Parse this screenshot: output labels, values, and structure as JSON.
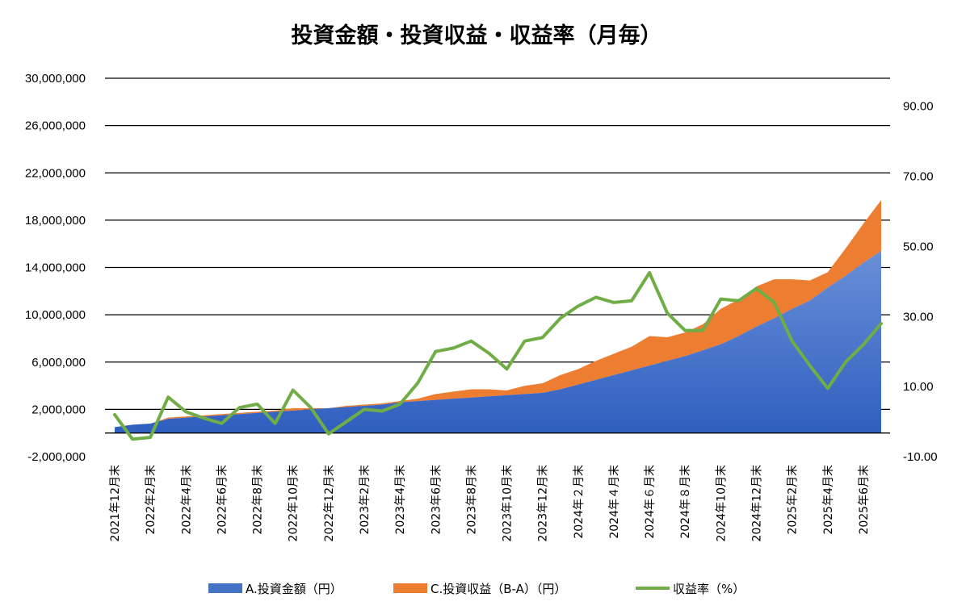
{
  "chart_data": {
    "type": "area",
    "title": "投資金額・投資収益・収益率（月毎）",
    "grid": true,
    "legend_position": "bottom",
    "y_left": {
      "ticks": [
        "30,000,000",
        "26,000,000",
        "22,000,000",
        "18,000,000",
        "14,000,000",
        "10,000,000",
        "6,000,000",
        "2,000,000",
        "-2,000,000"
      ],
      "range": [
        -2000000,
        30000000
      ]
    },
    "y_right": {
      "ticks": [
        "90.00",
        "70.00",
        "50.00",
        "30.00",
        "10.00",
        "-10.00"
      ],
      "range": [
        -10,
        98
      ]
    },
    "x_tick_labels": [
      "2021年12月末",
      "2022年2月末",
      "2022年4月末",
      "2022年6月末",
      "2022年8月末",
      "2022年10月末",
      "2022年12月末",
      "2023年2月末",
      "2023年4月末",
      "2023年6月末",
      "2023年8月末",
      "2023年10月末",
      "2023年12月末",
      "2024年２月末",
      "2024年４月末",
      "2024年６月末",
      "2024年８月末",
      "2024年10月末",
      "2024年12月末",
      "2025年2月末",
      "2025年4月末",
      "2025年6月末"
    ],
    "months": [
      "2021-12",
      "2022-01",
      "2022-02",
      "2022-03",
      "2022-04",
      "2022-05",
      "2022-06",
      "2022-07",
      "2022-08",
      "2022-09",
      "2022-10",
      "2022-11",
      "2022-12",
      "2023-01",
      "2023-02",
      "2023-03",
      "2023-04",
      "2023-05",
      "2023-06",
      "2023-07",
      "2023-08",
      "2023-09",
      "2023-10",
      "2023-11",
      "2023-12",
      "2024-01",
      "2024-02",
      "2024-03",
      "2024-04",
      "2024-05",
      "2024-06",
      "2024-07",
      "2024-08",
      "2024-09",
      "2024-10",
      "2024-11",
      "2024-12",
      "2025-01",
      "2025-02",
      "2025-03",
      "2025-04",
      "2025-05",
      "2025-06",
      "2025-07"
    ],
    "series": [
      {
        "name": "A.投資金額（円）",
        "type": "area",
        "color": "#4472C4",
        "axis": "left",
        "values": [
          500000,
          700000,
          800000,
          1200000,
          1300000,
          1400000,
          1500000,
          1600000,
          1700000,
          1800000,
          1900000,
          2000000,
          2100000,
          2200000,
          2300000,
          2400000,
          2600000,
          2700000,
          2800000,
          2900000,
          3000000,
          3100000,
          3200000,
          3300000,
          3400000,
          3700000,
          4100000,
          4500000,
          4900000,
          5300000,
          5700000,
          6100000,
          6500000,
          7000000,
          7500000,
          8200000,
          9000000,
          9700000,
          10500000,
          11200000,
          12300000,
          13300000,
          14400000,
          15400000
        ]
      },
      {
        "name": "C.投資収益（B-A）（円）",
        "type": "area",
        "color": "#ED7D31",
        "axis": "left",
        "values": [
          0,
          0,
          0,
          100000,
          100000,
          100000,
          100000,
          100000,
          100000,
          100000,
          200000,
          100000,
          0,
          100000,
          100000,
          100000,
          100000,
          200000,
          500000,
          600000,
          700000,
          600000,
          400000,
          700000,
          800000,
          1200000,
          1300000,
          1600000,
          1800000,
          2000000,
          2500000,
          2000000,
          2000000,
          2200000,
          3000000,
          3100000,
          3400000,
          3300000,
          2500000,
          1700000,
          1300000,
          2300000,
          3300000,
          4300000
        ]
      },
      {
        "name": "収益率（%）",
        "type": "line",
        "color": "#70AD47",
        "axis": "right",
        "values": [
          2.0,
          -5.0,
          -4.5,
          7.0,
          2.8,
          1.0,
          -0.5,
          4.0,
          5.0,
          -0.5,
          9.0,
          4.0,
          -3.5,
          0.0,
          3.5,
          3.0,
          5.0,
          11.0,
          20.0,
          21.0,
          23.0,
          19.5,
          15.0,
          23.0,
          24.0,
          29.5,
          33.0,
          35.5,
          34.0,
          34.5,
          42.5,
          31.0,
          26.0,
          26.0,
          35.0,
          34.5,
          38.0,
          34.0,
          23.0,
          16.0,
          9.5,
          17.0,
          22.0,
          28.0
        ]
      }
    ]
  }
}
